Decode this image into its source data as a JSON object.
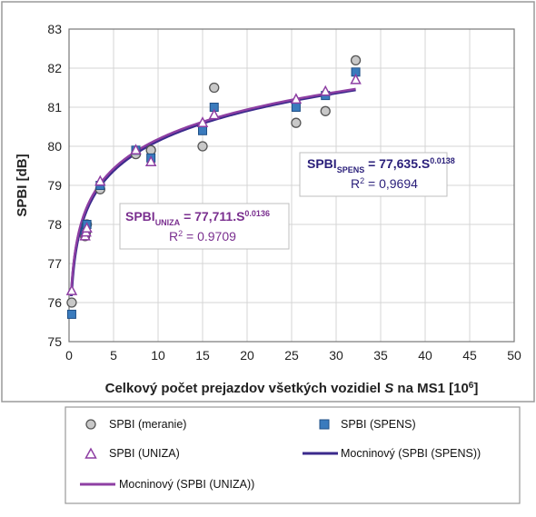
{
  "chart_data": {
    "type": "scatter",
    "xlabel_main": "Celkový počet prejazdov všetkých vozidiel ",
    "xlabel_var": "S",
    "xlabel_tail": " na MS1 [10",
    "xlabel_sup": "6",
    "xlabel_end": "]",
    "ylabel": "SPBI   [dB]",
    "xlim": [
      0,
      50
    ],
    "ylim": [
      75,
      83
    ],
    "xticks": [
      "0",
      "5",
      "10",
      "15",
      "20",
      "25",
      "30",
      "35",
      "40",
      "45",
      "50"
    ],
    "yticks": [
      "75",
      "76",
      "77",
      "78",
      "79",
      "80",
      "81",
      "82",
      "83"
    ],
    "grid": true,
    "series": [
      {
        "name": "SPBI (meranie)",
        "marker": "circle",
        "color": "#8c8c8c",
        "points": [
          [
            0.3,
            76.0
          ],
          [
            1.8,
            77.7
          ],
          [
            1.9,
            77.8
          ],
          [
            2.0,
            78.0
          ],
          [
            3.5,
            78.9
          ],
          [
            7.5,
            79.8
          ],
          [
            9.2,
            79.9
          ],
          [
            15.0,
            80.0
          ],
          [
            16.3,
            81.5
          ],
          [
            25.5,
            80.6
          ],
          [
            28.8,
            80.9
          ],
          [
            32.2,
            82.2
          ]
        ]
      },
      {
        "name": "SPBI (SPENS)",
        "marker": "square",
        "color": "#3a7bbd",
        "points": [
          [
            0.3,
            75.7
          ],
          [
            1.8,
            77.8
          ],
          [
            1.9,
            77.9
          ],
          [
            2.0,
            78.0
          ],
          [
            3.5,
            79.0
          ],
          [
            7.5,
            79.9
          ],
          [
            9.2,
            79.7
          ],
          [
            15.0,
            80.4
          ],
          [
            16.3,
            81.0
          ],
          [
            25.5,
            81.0
          ],
          [
            28.8,
            81.3
          ],
          [
            32.2,
            81.9
          ]
        ]
      },
      {
        "name": "SPBI (UNIZA)",
        "marker": "triangle",
        "color": "#8e3fa3",
        "points": [
          [
            0.3,
            76.3
          ],
          [
            1.8,
            77.7
          ],
          [
            1.9,
            77.8
          ],
          [
            2.0,
            77.9
          ],
          [
            3.5,
            79.1
          ],
          [
            7.5,
            79.9
          ],
          [
            9.2,
            79.6
          ],
          [
            15.0,
            80.6
          ],
          [
            16.3,
            80.8
          ],
          [
            25.5,
            81.2
          ],
          [
            28.8,
            81.4
          ],
          [
            32.2,
            81.7
          ]
        ]
      },
      {
        "name": "Mocninový (SPBI (SPENS))",
        "type": "line",
        "color": "#3b2a8c",
        "fit": {
          "a": 77.635,
          "b": 0.0138,
          "x_range": [
            0.25,
            32.2
          ]
        }
      },
      {
        "name": "Mocninový (SPBI (UNIZA))",
        "type": "line",
        "color": "#8e3fa3",
        "fit": {
          "a": 77.711,
          "b": 0.0136,
          "x_range": [
            0.25,
            32.2
          ]
        }
      }
    ],
    "annotations": [
      {
        "prefix": "SPBI",
        "sub": "SPENS",
        "eq": " = 77,635.S",
        "sup": "0.0138",
        "r2": "R",
        "r2sup": "2",
        "r2val": " = 0,9694",
        "color": "#2a1f7a"
      },
      {
        "prefix": "SPBI",
        "sub": "UNIZA",
        "eq": " = 77,711.S",
        "sup": "0.0136",
        "r2": "R",
        "r2sup": "2",
        "r2val": " = 0.9709",
        "color": "#7a2f8f"
      }
    ],
    "legend": {
      "position": "bottom",
      "entries": [
        {
          "label": "SPBI (meranie)",
          "marker": "circle"
        },
        {
          "label": "SPBI (SPENS)",
          "marker": "square"
        },
        {
          "label": "SPBI (UNIZA)",
          "marker": "triangle"
        },
        {
          "label": "Mocninový (SPBI (SPENS))",
          "marker": "line-spens"
        },
        {
          "label": "Mocninový (SPBI (UNIZA))",
          "marker": "line-uniza"
        }
      ]
    }
  }
}
